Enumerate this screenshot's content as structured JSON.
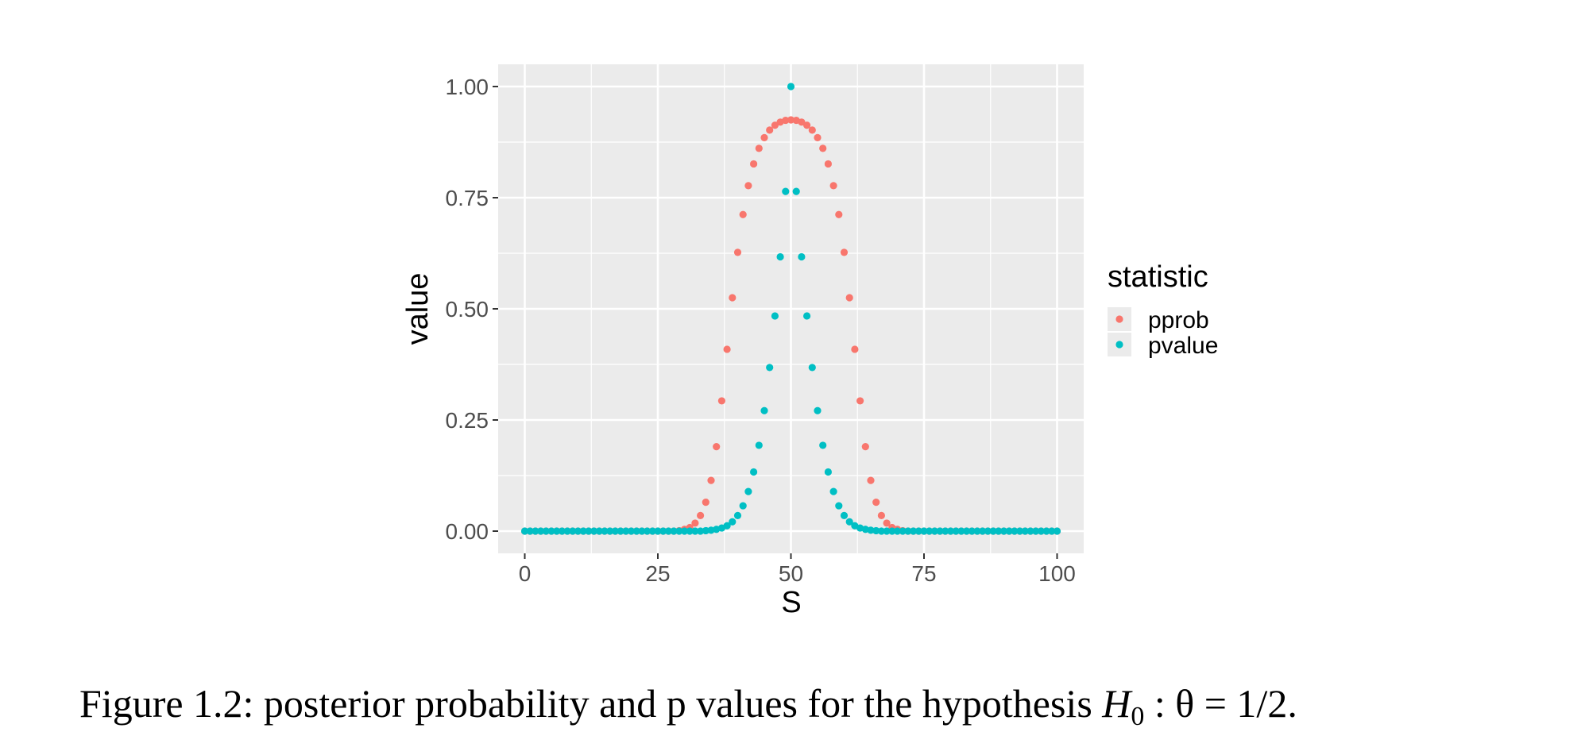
{
  "chart_data": {
    "type": "scatter",
    "title": "",
    "xlabel": "S",
    "ylabel": "value",
    "xlim": [
      -5,
      105
    ],
    "ylim": [
      -0.05,
      1.05
    ],
    "x_ticks": [
      0,
      25,
      50,
      75,
      100
    ],
    "x_tick_labels": [
      "0",
      "25",
      "50",
      "75",
      "100"
    ],
    "y_ticks": [
      0,
      0.25,
      0.5,
      0.75,
      1
    ],
    "y_tick_labels": [
      "0.00",
      "0.25",
      "0.50",
      "0.75",
      "1.00"
    ],
    "grid": true,
    "background": "#ebebeb",
    "legend": {
      "title": "statistic",
      "placement": "right"
    },
    "series": [
      {
        "name": "pprob",
        "color": "#f8766d",
        "x": [
          0,
          1,
          2,
          3,
          4,
          5,
          6,
          7,
          8,
          9,
          10,
          11,
          12,
          13,
          14,
          15,
          16,
          17,
          18,
          19,
          20,
          21,
          22,
          23,
          24,
          25,
          26,
          27,
          28,
          29,
          30,
          31,
          32,
          33,
          34,
          35,
          36,
          37,
          38,
          39,
          40,
          41,
          42,
          43,
          44,
          45,
          46,
          47,
          48,
          49,
          50,
          51,
          52,
          53,
          54,
          55,
          56,
          57,
          58,
          59,
          60,
          61,
          62,
          63,
          64,
          65,
          66,
          67,
          68,
          69,
          70,
          71,
          72,
          73,
          74,
          75,
          76,
          77,
          78,
          79,
          80,
          81,
          82,
          83,
          84,
          85,
          86,
          87,
          88,
          89,
          90,
          91,
          92,
          93,
          94,
          95,
          96,
          97,
          98,
          99,
          100
        ],
        "values": [
          0,
          0,
          0,
          0,
          0,
          0,
          0,
          0,
          0,
          0,
          0,
          0,
          0,
          0,
          0,
          0,
          0,
          0,
          0,
          0,
          0,
          0,
          0,
          0,
          0,
          0,
          0,
          0,
          0,
          0.001,
          0.004,
          0.008,
          0.018,
          0.035,
          0.065,
          0.114,
          0.19,
          0.293,
          0.409,
          0.525,
          0.627,
          0.712,
          0.777,
          0.826,
          0.861,
          0.885,
          0.902,
          0.913,
          0.92,
          0.924,
          0.925,
          0.924,
          0.92,
          0.913,
          0.902,
          0.885,
          0.861,
          0.826,
          0.777,
          0.712,
          0.627,
          0.525,
          0.409,
          0.293,
          0.19,
          0.114,
          0.065,
          0.035,
          0.018,
          0.008,
          0.004,
          0.001,
          0,
          0,
          0,
          0,
          0,
          0,
          0,
          0,
          0,
          0,
          0,
          0,
          0,
          0,
          0,
          0,
          0,
          0,
          0,
          0,
          0,
          0,
          0,
          0,
          0,
          0,
          0,
          0,
          0
        ]
      },
      {
        "name": "pvalue",
        "color": "#00bfc4",
        "x": [
          0,
          1,
          2,
          3,
          4,
          5,
          6,
          7,
          8,
          9,
          10,
          11,
          12,
          13,
          14,
          15,
          16,
          17,
          18,
          19,
          20,
          21,
          22,
          23,
          24,
          25,
          26,
          27,
          28,
          29,
          30,
          31,
          32,
          33,
          34,
          35,
          36,
          37,
          38,
          39,
          40,
          41,
          42,
          43,
          44,
          45,
          46,
          47,
          48,
          49,
          50,
          51,
          52,
          53,
          54,
          55,
          56,
          57,
          58,
          59,
          60,
          61,
          62,
          63,
          64,
          65,
          66,
          67,
          68,
          69,
          70,
          71,
          72,
          73,
          74,
          75,
          76,
          77,
          78,
          79,
          80,
          81,
          82,
          83,
          84,
          85,
          86,
          87,
          88,
          89,
          90,
          91,
          92,
          93,
          94,
          95,
          96,
          97,
          98,
          99,
          100
        ],
        "values": [
          0,
          0,
          0,
          0,
          0,
          0,
          0,
          0,
          0,
          0,
          0,
          0,
          0,
          0,
          0,
          0,
          0,
          0,
          0,
          0,
          0,
          0,
          0,
          0,
          0,
          0,
          0,
          0,
          0,
          0,
          0,
          0,
          0,
          0,
          0.001,
          0.002,
          0.004,
          0.007,
          0.012,
          0.021,
          0.035,
          0.057,
          0.089,
          0.133,
          0.193,
          0.271,
          0.368,
          0.484,
          0.617,
          0.764,
          1,
          0.764,
          0.617,
          0.484,
          0.368,
          0.271,
          0.193,
          0.133,
          0.089,
          0.057,
          0.035,
          0.021,
          0.012,
          0.007,
          0.004,
          0.002,
          0.001,
          0,
          0,
          0,
          0,
          0,
          0,
          0,
          0,
          0,
          0,
          0,
          0,
          0,
          0,
          0,
          0,
          0,
          0,
          0,
          0,
          0,
          0,
          0,
          0,
          0,
          0,
          0,
          0,
          0,
          0,
          0,
          0,
          0,
          0
        ]
      }
    ]
  },
  "caption": {
    "prefix": "Figure 1.2: posterior probability and p values for the hypothesis ",
    "math_H": "H",
    "math_sub": "0",
    "math_rest": " : θ = 1/2."
  }
}
